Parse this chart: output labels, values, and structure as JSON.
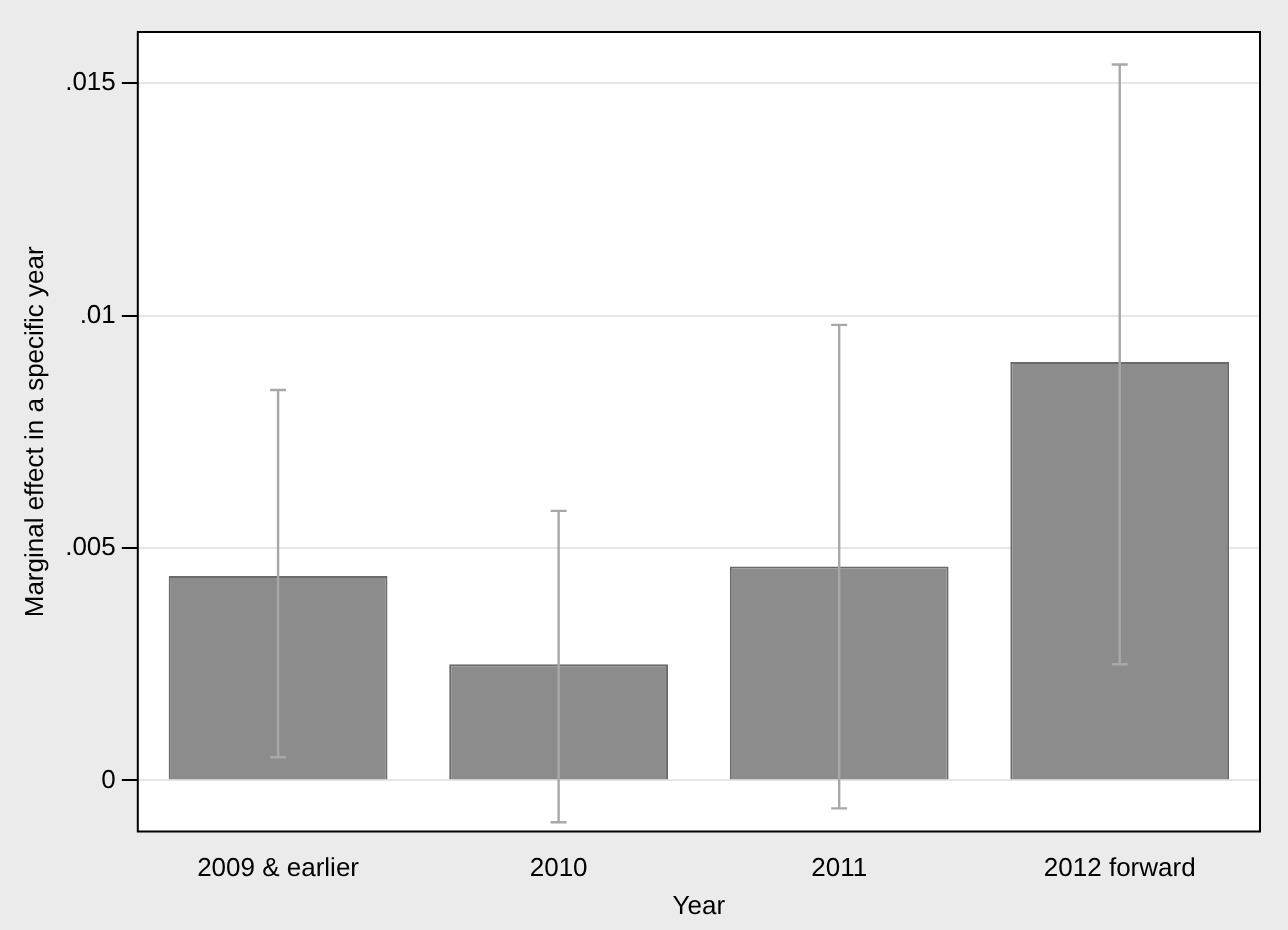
{
  "chart_data": {
    "type": "bar",
    "xlabel": "Year",
    "ylabel": "Marginal effect in a specific year",
    "categories": [
      "2009 & earlier",
      "2010",
      "2011",
      "2012 forward"
    ],
    "values": [
      0.0044,
      0.0025,
      0.0046,
      0.009
    ],
    "errors": [
      [
        0.0005,
        0.0084
      ],
      [
        -0.0009,
        0.0058
      ],
      [
        -0.0006,
        0.0098
      ],
      [
        0.0025,
        0.0154
      ]
    ],
    "color": "#8c8c8c",
    "ylim": [
      -0.0011,
      0.0161
    ],
    "yticks": [
      0,
      {
        "value": 0.005,
        "label": ".005"
      },
      {
        "value": 0.01,
        "label": ".01"
      },
      {
        "value": 0.015,
        "label": ".015"
      }
    ],
    "grid": "y",
    "legend": false
  }
}
